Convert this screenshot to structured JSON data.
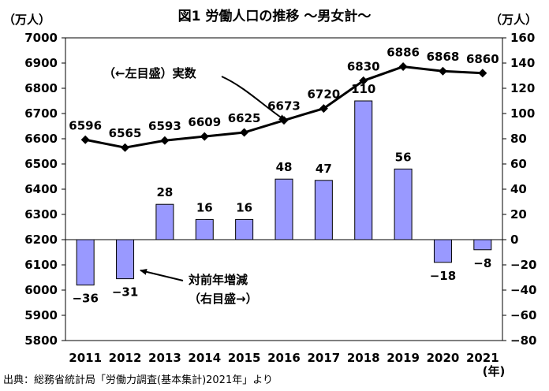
{
  "chart_data": {
    "type": "bar+line",
    "title": "図1 労働人口の推移 ～男女計～",
    "left_axis_unit": "（万人）",
    "right_axis_unit": "（万人）",
    "x_unit": "(年)",
    "categories": [
      "2011",
      "2012",
      "2013",
      "2014",
      "2015",
      "2016",
      "2017",
      "2018",
      "2019",
      "2020",
      "2021"
    ],
    "left_axis": {
      "min": 5800,
      "max": 7000,
      "step": 100
    },
    "right_axis": {
      "min": -80,
      "max": 160,
      "step": 20
    },
    "series": [
      {
        "name": "実数",
        "axis": "left",
        "kind": "line",
        "values": [
          6596,
          6565,
          6593,
          6609,
          6625,
          6673,
          6720,
          6830,
          6886,
          6868,
          6860
        ]
      },
      {
        "name": "対前年増減",
        "axis": "right",
        "kind": "bar",
        "values": [
          -36,
          -31,
          28,
          16,
          16,
          48,
          47,
          110,
          56,
          -18,
          -8
        ]
      }
    ],
    "annotations": {
      "line_label": "（←左目盛）実数",
      "bar_label_line1": "対前年増減",
      "bar_label_line2": "（右目盛→）"
    },
    "colors": {
      "bar_fill": "#9999ff",
      "bar_stroke": "#000000",
      "line": "#000000"
    }
  },
  "source": "出典：総務省統計局「労働力調査(基本集計)2021年」より"
}
